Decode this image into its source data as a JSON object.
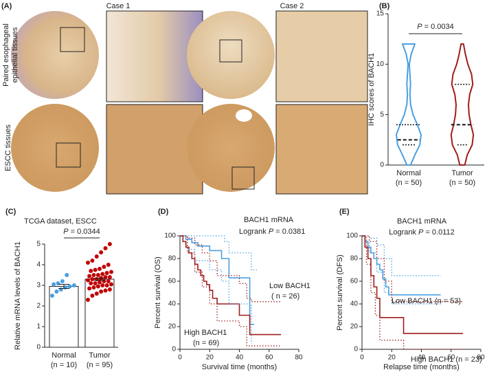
{
  "figure": {
    "labels": [
      "(A)",
      "(B)",
      "(C)",
      "(D)",
      "(E)"
    ],
    "panel_a": {
      "columns": [
        "Case 1",
        "Case 2"
      ],
      "rows": [
        [
          "Paired esophageal",
          "epithelial tissues"
        ],
        [
          "ESCC tissues"
        ]
      ]
    }
  },
  "chart_data": [
    {
      "type": "violin",
      "ylabel": "IHC scores of BACH1",
      "categories": [
        "Normal",
        "Tumor"
      ],
      "category_notes": [
        "(n = 50)",
        "(n = 50)"
      ],
      "colors": [
        "#4a9fe0",
        "#a01c1c"
      ],
      "pvalue": {
        "symbol": "P",
        "text": "= 0.0034"
      },
      "ylim": [
        0,
        15
      ],
      "yticks": [
        0,
        5,
        10,
        15
      ],
      "density_y": [
        0,
        1,
        2,
        3,
        4,
        5,
        6,
        7,
        8,
        9,
        10,
        11,
        12
      ],
      "violins": [
        {
          "q1": 2,
          "median": 2.5,
          "q3": 4,
          "density": [
            0.15,
            0.5,
            0.9,
            1.0,
            0.7,
            0.35,
            0.15,
            0.1,
            0.15,
            0.1,
            0.05,
            0.2,
            0.5
          ]
        },
        {
          "q1": 2,
          "median": 4,
          "q3": 8,
          "density": [
            0.2,
            0.4,
            0.8,
            0.9,
            0.7,
            0.55,
            0.5,
            0.6,
            0.85,
            0.75,
            0.45,
            0.25,
            0.1
          ]
        }
      ]
    },
    {
      "type": "bar",
      "title": "TCGA dataset, ESCC",
      "ylabel": "Relative mRNA levels of BACH1",
      "categories": [
        "Normal",
        "Tumor"
      ],
      "category_notes": [
        "(n = 10)",
        "(n = 95)"
      ],
      "pvalue": {
        "symbol": "P",
        "text": "= 0.0344"
      },
      "values": [
        2.95,
        3.3
      ],
      "errors": [
        0.1,
        0.05
      ],
      "point_colors": [
        "#4a9fe0",
        "#c00000"
      ],
      "points": [
        [
          2.5,
          2.7,
          2.8,
          2.9,
          2.95,
          3.0,
          3.05,
          3.1,
          3.2,
          3.5
        ],
        [
          2.3,
          2.5,
          2.6,
          2.7,
          2.75,
          2.8,
          2.85,
          2.9,
          2.95,
          3.0,
          3.0,
          3.05,
          3.1,
          3.1,
          3.15,
          3.2,
          3.2,
          3.25,
          3.3,
          3.3,
          3.35,
          3.4,
          3.4,
          3.45,
          3.5,
          3.5,
          3.55,
          3.6,
          3.65,
          3.7,
          3.75,
          3.8,
          3.9,
          4.0,
          4.1,
          4.2,
          4.4,
          4.6,
          4.8,
          5.0
        ]
      ],
      "ylim": [
        0,
        5
      ],
      "yticks": [
        0,
        1,
        2,
        3,
        4,
        5
      ]
    },
    {
      "type": "km",
      "xlabel": "Survival time (months)",
      "ylabel": "Percent survival (OS)",
      "annotations": [
        "BACH1 mRNA",
        "Low BACH1",
        "( n = 26)",
        "High BACH1",
        "(n = 69)"
      ],
      "logrank": {
        "prefix": "Logrank",
        "symbol": "P",
        "text": "= 0.0381"
      },
      "xlim": [
        0,
        80
      ],
      "xticks": [
        0,
        20,
        40,
        60,
        80
      ],
      "ylim": [
        0,
        100
      ],
      "yticks": [
        0,
        20,
        40,
        60,
        80,
        100
      ],
      "series": [
        {
          "color": "#4a9fe0",
          "style": "solid",
          "x": [
            0,
            4,
            8,
            12,
            20,
            28,
            33,
            46,
            47,
            50
          ],
          "y": [
            100,
            97,
            94,
            91,
            87,
            80,
            63,
            63,
            22,
            22
          ]
        },
        {
          "color": "#a01c1c",
          "style": "solid",
          "x": [
            0,
            2,
            4,
            6,
            8,
            10,
            12,
            14,
            16,
            18,
            20,
            22,
            25,
            30,
            40,
            43,
            47,
            68
          ],
          "y": [
            100,
            95,
            90,
            85,
            80,
            75,
            70,
            65,
            60,
            57,
            52,
            45,
            40,
            40,
            30,
            30,
            13,
            13
          ]
        },
        {
          "color": "#4a9fe0",
          "style": "dotted",
          "x": [
            0,
            10,
            20,
            30,
            33,
            46,
            48,
            52
          ],
          "y": [
            100,
            100,
            100,
            95,
            85,
            85,
            70,
            70
          ]
        },
        {
          "color": "#4a9fe0",
          "style": "dotted",
          "x": [
            0,
            5,
            10,
            20,
            28,
            33,
            46,
            48
          ],
          "y": [
            100,
            88,
            78,
            70,
            60,
            40,
            40,
            5
          ]
        },
        {
          "color": "#a01c1c",
          "style": "dotted",
          "x": [
            0,
            5,
            10,
            15,
            20,
            25,
            40,
            45,
            48,
            68
          ],
          "y": [
            100,
            98,
            92,
            85,
            78,
            65,
            58,
            45,
            42,
            42
          ]
        },
        {
          "color": "#a01c1c",
          "style": "dotted",
          "x": [
            0,
            5,
            10,
            15,
            20,
            25,
            40,
            45,
            68
          ],
          "y": [
            100,
            85,
            68,
            55,
            40,
            25,
            20,
            3,
            3
          ]
        }
      ]
    },
    {
      "type": "km",
      "xlabel": "Relapse time (months)",
      "ylabel": "Percent survival (DFS)",
      "annotations": [
        "BACH1 mRNA",
        "Low BACH1 (n = 53)",
        "High BACH1 (n = 23)"
      ],
      "logrank": {
        "prefix": "Logrank",
        "symbol": "P",
        "text": "= 0.0112"
      },
      "xlim": [
        0,
        80
      ],
      "xticks": [
        0,
        20,
        40,
        60,
        80
      ],
      "ylim": [
        0,
        100
      ],
      "yticks": [
        0,
        20,
        40,
        60,
        80,
        100
      ],
      "series": [
        {
          "color": "#4a9fe0",
          "style": "solid",
          "x": [
            0,
            2,
            4,
            6,
            8,
            10,
            12,
            14,
            16,
            18,
            53
          ],
          "y": [
            100,
            95,
            90,
            85,
            80,
            75,
            70,
            62,
            55,
            48,
            48
          ]
        },
        {
          "color": "#a01c1c",
          "style": "solid",
          "x": [
            0,
            2,
            4,
            6,
            8,
            10,
            12,
            28,
            68
          ],
          "y": [
            100,
            90,
            80,
            65,
            55,
            45,
            28,
            14,
            14
          ]
        },
        {
          "color": "#4a9fe0",
          "style": "dotted",
          "x": [
            0,
            5,
            10,
            15,
            20,
            53
          ],
          "y": [
            100,
            98,
            92,
            80,
            65,
            65
          ]
        },
        {
          "color": "#4a9fe0",
          "style": "dotted",
          "x": [
            0,
            5,
            10,
            15,
            20,
            53
          ],
          "y": [
            100,
            85,
            68,
            50,
            40,
            40
          ]
        },
        {
          "color": "#a01c1c",
          "style": "dotted",
          "x": [
            0,
            5,
            10,
            15,
            20,
            28,
            68
          ],
          "y": [
            100,
            95,
            80,
            60,
            42,
            42,
            42
          ]
        },
        {
          "color": "#a01c1c",
          "style": "dotted",
          "x": [
            0,
            3,
            6,
            9,
            12,
            28,
            68
          ],
          "y": [
            100,
            75,
            50,
            30,
            8,
            0,
            0
          ]
        }
      ]
    }
  ]
}
